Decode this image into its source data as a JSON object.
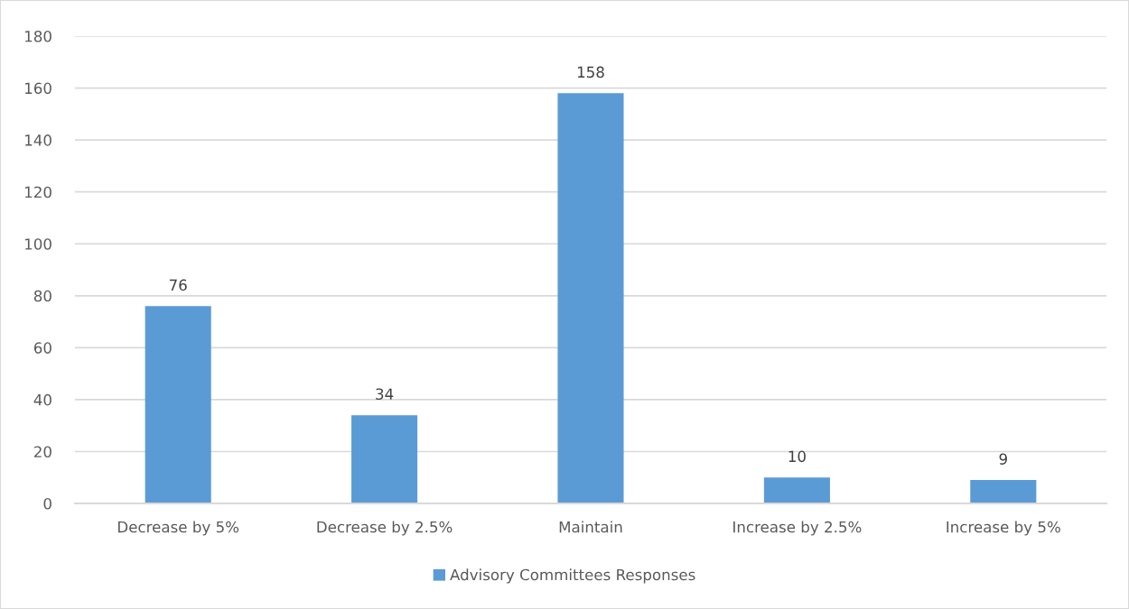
{
  "chart_data": {
    "type": "bar",
    "categories": [
      "Decrease by 5%",
      "Decrease by 2.5%",
      "Maintain",
      "Increase by 2.5%",
      "Increase by 5%"
    ],
    "series": [
      {
        "name": "Advisory Committees Responses",
        "color": "#5b9bd5",
        "values": [
          76,
          34,
          158,
          10,
          9
        ]
      }
    ],
    "ylim": [
      0,
      180
    ],
    "yticks": [
      0,
      20,
      40,
      60,
      80,
      100,
      120,
      140,
      160,
      180
    ],
    "grid": "y",
    "legend": "bottom",
    "data_labels": true
  }
}
